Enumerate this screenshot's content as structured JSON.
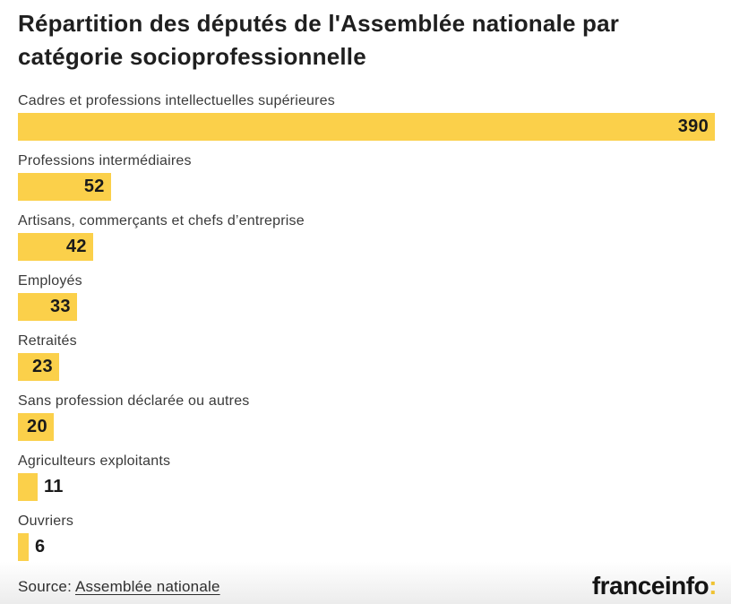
{
  "title": "Répartition des députés de l'Assemblée nationale par catégorie socioprofessionnelle",
  "chart_data": {
    "type": "bar",
    "orientation": "horizontal",
    "categories": [
      "Cadres et professions intellectuelles supérieures",
      "Professions intermédiaires",
      "Artisans, commerçants et chefs d’entreprise",
      "Employés",
      "Retraités",
      "Sans profession déclarée ou autres",
      "Agriculteurs exploitants",
      "Ouvriers"
    ],
    "values": [
      390,
      52,
      42,
      33,
      23,
      20,
      11,
      6
    ],
    "xlim": [
      0,
      390
    ],
    "title": "Répartition des députés de l'Assemblée nationale par catégorie socioprofessionnelle",
    "xlabel": "",
    "ylabel": "",
    "legend": false,
    "grid": false,
    "bar_color": "#fbd04a",
    "value_label_color": "#1a1a1a",
    "value_labels_shown": true
  },
  "footer": {
    "source_prefix": "Source: ",
    "source_link": "Assemblée nationale",
    "brand_name": "franceinfo",
    "brand_colon": ":",
    "brand_accent_color": "#efc231"
  }
}
